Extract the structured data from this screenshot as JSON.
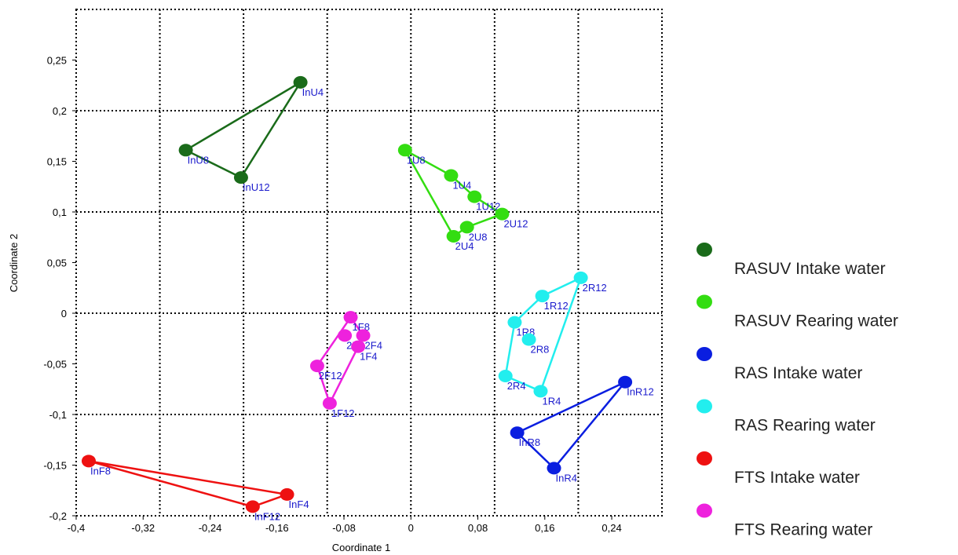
{
  "chart_data": {
    "type": "scatter",
    "x_label": "Coordinate 1",
    "y_label": "Coordinate 2",
    "xlim": [
      -0.4,
      0.3
    ],
    "ylim": [
      -0.2,
      0.3
    ],
    "xticks": [
      {
        "value": -0.4,
        "label": "-0,4"
      },
      {
        "value": -0.32,
        "label": "-0,32"
      },
      {
        "value": -0.24,
        "label": "-0,24"
      },
      {
        "value": -0.16,
        "label": "-0,16"
      },
      {
        "value": -0.08,
        "label": "-0,08"
      },
      0,
      {
        "value": 0.08,
        "label": "0,08"
      },
      {
        "value": 0.16,
        "label": "0,16"
      },
      {
        "value": 0.24,
        "label": "0,24"
      }
    ],
    "yticks": [
      {
        "value": -0.2,
        "label": "-0,2"
      },
      {
        "value": -0.15,
        "label": "-0,15"
      },
      {
        "value": -0.1,
        "label": "-0,1"
      },
      {
        "value": -0.05,
        "label": "-0,05"
      },
      0,
      {
        "value": 0.05,
        "label": "0,05"
      },
      {
        "value": 0.1,
        "label": "0,1"
      },
      {
        "value": 0.15,
        "label": "0,15"
      },
      {
        "value": 0.2,
        "label": "0,2"
      },
      {
        "value": 0.25,
        "label": "0,25"
      }
    ],
    "xgrid": [
      -0.3,
      -0.2,
      -0.1,
      0,
      0.1,
      0.2
    ],
    "ygrid": [
      -0.1,
      0,
      0.1,
      0.2
    ],
    "series": [
      {
        "name": "RASUV  Intake water",
        "color": "#1a6b1a",
        "labels": [
          "InU4",
          "InU8",
          "InU12"
        ],
        "x": [
          -0.132,
          -0.269,
          -0.203
        ],
        "values": [
          0.228,
          0.161,
          0.134
        ],
        "outline": [
          0,
          1,
          2
        ]
      },
      {
        "name": "RASUV  Rearing water",
        "color": "#33dd11",
        "labels": [
          "1U8",
          "1U4",
          "1U12",
          "2U12",
          "2U8",
          "2U4"
        ],
        "x": [
          -0.007,
          0.048,
          0.076,
          0.109,
          0.067,
          0.051
        ],
        "values": [
          0.161,
          0.136,
          0.115,
          0.098,
          0.085,
          0.076
        ],
        "outline": [
          0,
          1,
          2,
          3,
          4,
          5
        ]
      },
      {
        "name": "RAS Intake water",
        "color": "#0a1ee0",
        "labels": [
          "InR12",
          "InR8",
          "InR4"
        ],
        "x": [
          0.256,
          0.127,
          0.171
        ],
        "values": [
          -0.068,
          -0.118,
          -0.153
        ],
        "outline": [
          0,
          1,
          2
        ]
      },
      {
        "name": "RAS Rearing water",
        "color": "#22eeee",
        "labels": [
          "2R12",
          "1R12",
          "1R8",
          "2R8",
          "2R4",
          "1R4"
        ],
        "x": [
          0.203,
          0.157,
          0.124,
          0.141,
          0.113,
          0.155
        ],
        "values": [
          0.035,
          0.017,
          -0.009,
          -0.026,
          -0.062,
          -0.077
        ],
        "outline": [
          0,
          1,
          2,
          4,
          5
        ]
      },
      {
        "name": "FTS Intake water",
        "color": "#ee1111",
        "labels": [
          "InF8",
          "InF4",
          "InF12"
        ],
        "x": [
          -0.385,
          -0.148,
          -0.189
        ],
        "values": [
          -0.146,
          -0.179,
          -0.191
        ],
        "outline": [
          0,
          1,
          2
        ]
      },
      {
        "name": "FTS Rearing water",
        "color": "#ee22dd",
        "labels": [
          "1F8",
          "2F8",
          "2F4",
          "1F4",
          "2F12",
          "1F12"
        ],
        "x": [
          -0.072,
          -0.079,
          -0.057,
          -0.063,
          -0.112,
          -0.097
        ],
        "values": [
          -0.004,
          -0.022,
          -0.022,
          -0.033,
          -0.052,
          -0.089
        ],
        "outline": [
          0,
          2,
          3,
          5,
          4
        ]
      }
    ]
  }
}
